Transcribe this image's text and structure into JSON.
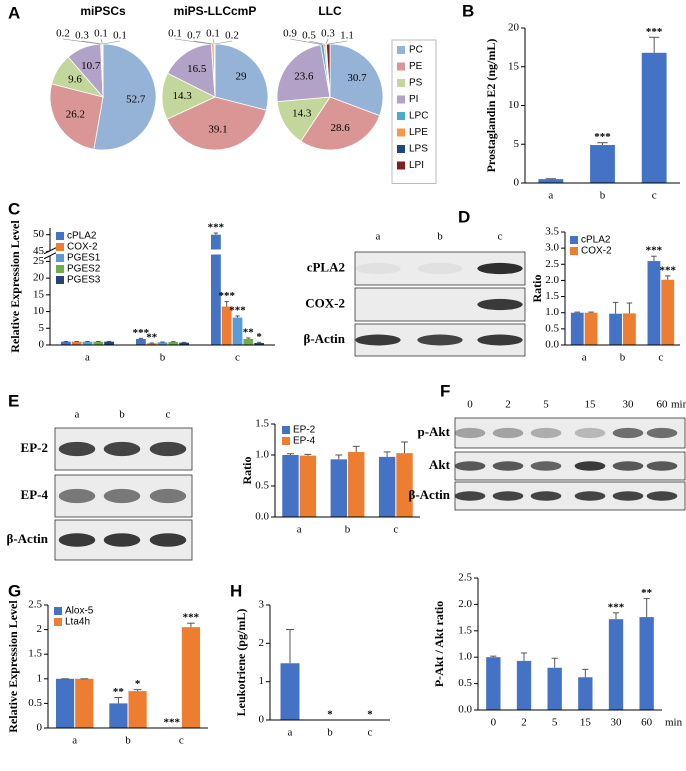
{
  "chart_data": [
    {
      "type": "pie",
      "panel": "A",
      "categories": [
        "PC",
        "PE",
        "PS",
        "PI",
        "LPC",
        "LPE",
        "LPS",
        "LPI"
      ],
      "colors": [
        "#95b3d7",
        "#d99694",
        "#c3d69b",
        "#b3a2c7",
        "#4bacc6",
        "#f79646",
        "#1f497d",
        "#7f1f1f"
      ],
      "pies": [
        {
          "title": "miPSCs",
          "values": [
            52.7,
            26.2,
            9.6,
            10.7,
            0.2,
            0.3,
            0.1,
            0.1
          ]
        },
        {
          "title": "miPS-LLCcmP",
          "values": [
            29.0,
            39.1,
            14.3,
            16.5,
            0.1,
            0.7,
            0.1,
            0.2
          ]
        },
        {
          "title": "LLC",
          "values": [
            30.7,
            28.6,
            14.3,
            23.6,
            0.9,
            0.5,
            0.3,
            1.1
          ]
        }
      ]
    },
    {
      "type": "bar",
      "panel": "B",
      "ylabel": "Prostaglandin E2 (ng/mL)",
      "categories": [
        "a",
        "b",
        "c"
      ],
      "color": "#4472c4",
      "values": [
        0.5,
        4.9,
        16.8
      ],
      "errors": [
        0.05,
        0.3,
        2.0
      ],
      "annotations": [
        null,
        "***",
        "***"
      ],
      "ylim": [
        0,
        20
      ],
      "yticks": [
        0,
        5,
        10,
        15,
        20
      ]
    },
    {
      "type": "bar",
      "panel": "C",
      "ylabel": "Relative Expression Level",
      "legend": "upper left",
      "categories": [
        "a",
        "b",
        "c"
      ],
      "series": [
        {
          "name": "cPLA2",
          "color": "#4472c4",
          "values": [
            1,
            1.8,
            50
          ],
          "errors": [
            0.05,
            0.2,
            0.5
          ],
          "annotations": [
            null,
            "***",
            "***"
          ]
        },
        {
          "name": "COX-2",
          "color": "#ed7d31",
          "values": [
            1,
            0.5,
            11.5
          ],
          "errors": [
            0.05,
            0.1,
            1.5
          ],
          "annotations": [
            null,
            "**",
            "***"
          ]
        },
        {
          "name": "PGES1",
          "color": "#5b9bd5",
          "values": [
            1,
            0.8,
            8.2
          ],
          "errors": [
            0.05,
            0.1,
            0.5
          ],
          "annotations": [
            null,
            null,
            "***"
          ]
        },
        {
          "name": "PGES2",
          "color": "#70ad47",
          "values": [
            1,
            0.9,
            1.8
          ],
          "errors": [
            0.05,
            0.1,
            0.3
          ],
          "annotations": [
            null,
            null,
            "**"
          ]
        },
        {
          "name": "PGES3",
          "color": "#264478",
          "values": [
            1,
            0.7,
            0.6
          ],
          "errors": [
            0.05,
            0.1,
            0.2
          ],
          "annotations": [
            null,
            null,
            "*"
          ]
        }
      ],
      "ylim": [
        0,
        52
      ],
      "ybreak": [
        27,
        44
      ],
      "yticks": [
        0,
        5,
        10,
        15,
        20,
        25,
        45,
        50
      ]
    },
    {
      "type": "bar",
      "ylabel": "Ratio",
      "legend": "upper left",
      "categories": [
        "a",
        "b",
        "c"
      ],
      "series": [
        {
          "name": "cPLA2",
          "color": "#4472c4",
          "values": [
            1,
            0.97,
            2.6
          ],
          "errors": [
            0.02,
            0.35,
            0.15
          ],
          "annotations": [
            null,
            null,
            "***"
          ]
        },
        {
          "name": "COX-2",
          "color": "#ed7d31",
          "values": [
            1,
            0.98,
            2.02
          ],
          "errors": [
            0.02,
            0.32,
            0.12
          ],
          "annotations": [
            null,
            null,
            "***"
          ]
        }
      ],
      "ylim": [
        0,
        3.5
      ],
      "yticks": [
        {
          "value": 0,
          "label": "0.0"
        },
        0.5,
        {
          "value": 1,
          "label": "1.0"
        },
        1.5,
        {
          "value": 2,
          "label": "2.0"
        },
        2.5,
        {
          "value": 3,
          "label": "3.0"
        },
        3.5
      ]
    },
    {
      "type": "bar",
      "ylabel": "Ratio",
      "legend": "upper left",
      "categories": [
        "a",
        "b",
        "c"
      ],
      "series": [
        {
          "name": "EP-2",
          "color": "#4472c4",
          "values": [
            1.0,
            0.93,
            0.97
          ],
          "errors": [
            0.02,
            0.07,
            0.08
          ]
        },
        {
          "name": "EP-4",
          "color": "#ed7d31",
          "values": [
            0.99,
            1.05,
            1.03
          ],
          "errors": [
            0.02,
            0.09,
            0.18
          ]
        }
      ],
      "ylim": [
        0,
        1.5
      ],
      "yticks": [
        {
          "value": 0,
          "label": "0.0"
        },
        0.5,
        {
          "value": 1,
          "label": "1.0"
        },
        1.5
      ]
    },
    {
      "type": "bar",
      "ylabel": "P-Akt / Akt ratio",
      "xlabel": "min",
      "categories": [
        "0",
        "2",
        "5",
        "15",
        "30",
        "60"
      ],
      "color": "#4472c4",
      "values": [
        1.0,
        0.93,
        0.8,
        0.62,
        1.72,
        1.76
      ],
      "errors": [
        0.02,
        0.15,
        0.18,
        0.15,
        0.12,
        0.35
      ],
      "annotations": [
        null,
        null,
        null,
        null,
        "***",
        "**"
      ],
      "ylim": [
        0,
        2.5
      ],
      "yticks": [
        {
          "value": 0,
          "label": "0.0"
        },
        0.5,
        {
          "value": 1,
          "label": "1.0"
        },
        1.5,
        {
          "value": 2,
          "label": "2.0"
        },
        2.5
      ]
    },
    {
      "type": "bar",
      "panel": "G",
      "ylabel": "Relative Expression Level",
      "legend": "upper left",
      "categories": [
        "a",
        "b",
        "c"
      ],
      "series": [
        {
          "name": "Alox-5",
          "color": "#4472c4",
          "values": [
            1,
            0.5,
            0
          ],
          "errors": [
            0,
            0.12,
            0
          ],
          "annotations": [
            null,
            "**",
            "***"
          ]
        },
        {
          "name": "Lta4h",
          "color": "#ed7d31",
          "values": [
            1,
            0.75,
            2.05
          ],
          "errors": [
            0,
            0.03,
            0.08
          ],
          "annotations": [
            null,
            "*",
            "***"
          ]
        }
      ],
      "ylim": [
        0,
        2.5
      ],
      "yticks": [
        0,
        0.5,
        1,
        1.5,
        2,
        2.5
      ]
    },
    {
      "type": "bar",
      "panel": "H",
      "ylabel": "Leukotriene (pg/mL)",
      "categories": [
        "a",
        "b",
        "c"
      ],
      "color": "#4472c4",
      "values": [
        1.48,
        0,
        0
      ],
      "errors": [
        0.88,
        0,
        0
      ],
      "annotations": [
        null,
        "*",
        "*"
      ],
      "ylim": [
        0,
        3
      ],
      "yticks": [
        0,
        1,
        2,
        3
      ]
    }
  ],
  "blots": [
    {
      "panel": "D",
      "lanes": [
        "a",
        "b",
        "c"
      ],
      "rows": [
        "cPLA2",
        "COX-2",
        "β-Actin"
      ]
    },
    {
      "panel": "E",
      "lanes": [
        "a",
        "b",
        "c"
      ],
      "rows": [
        "EP-2",
        "EP-4",
        "β-Actin"
      ]
    },
    {
      "panel": "F",
      "lanes": [
        "0",
        "2",
        "5",
        "15",
        "30",
        "60"
      ],
      "unit": "min",
      "rows": [
        "p-Akt",
        "Akt",
        "β-Actin"
      ]
    }
  ]
}
